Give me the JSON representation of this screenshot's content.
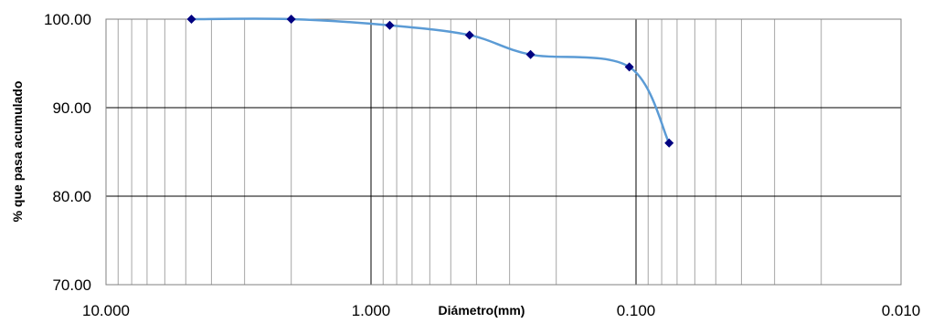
{
  "chart_data": {
    "type": "scatter",
    "title": "",
    "xlabel": "Diámetro(mm)",
    "ylabel": "% que pasa acumulado",
    "x_scale": "log",
    "x_reversed": true,
    "xlim": [
      10,
      0.01
    ],
    "ylim": [
      70,
      100
    ],
    "x_ticks": [
      10,
      1,
      0.1,
      0.01
    ],
    "x_tick_labels": [
      "10.000",
      "1.000",
      "0.100",
      "0.010"
    ],
    "y_ticks": [
      70,
      80,
      90,
      100
    ],
    "y_tick_labels": [
      "70.00",
      "80.00",
      "90.00",
      "100.00"
    ],
    "grid": true,
    "legend": "none",
    "series": [
      {
        "marker": "diamond",
        "line": "smooth",
        "x": [
          4.76,
          2.0,
          0.85,
          0.425,
          0.25,
          0.106,
          0.075
        ],
        "y": [
          100.0,
          100.0,
          99.3,
          98.2,
          96.0,
          94.6,
          86.0
        ]
      }
    ],
    "colors": {
      "line": "#5b9bd5",
      "marker": "#000080",
      "grid": "#a6a6a6",
      "axis": "#808080"
    }
  }
}
